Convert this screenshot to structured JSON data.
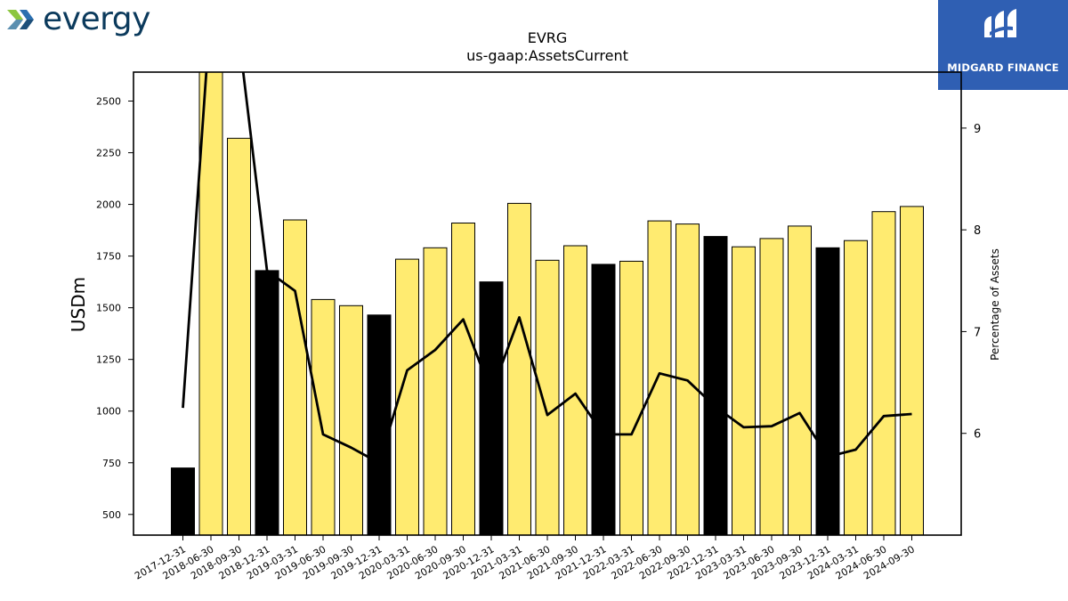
{
  "header": {
    "left_logo_text": "evergy",
    "right_logo_text": "MIDGARD FINANCE",
    "left_logo_icon": "evergy-chevron-icon",
    "right_logo_icon": "midgard-monogram-icon"
  },
  "chart_data": {
    "type": "bar",
    "title": "EVRG",
    "subtitle": "us-gaap:AssetsCurrent",
    "ylabel": "USDm",
    "y2label": "Percentage of Assets",
    "ylim": [
      400,
      2640
    ],
    "y2lim": [
      5.0,
      9.55
    ],
    "yticks": [
      500,
      750,
      1000,
      1250,
      1500,
      1750,
      2000,
      2250,
      2500
    ],
    "y2ticks": [
      6,
      7,
      8,
      9
    ],
    "grid": false,
    "categories": [
      "2017-12-31",
      "2018-06-30",
      "2018-09-30",
      "2018-12-31",
      "2019-03-31",
      "2019-06-30",
      "2019-09-30",
      "2019-12-31",
      "2020-03-31",
      "2020-06-30",
      "2020-09-30",
      "2020-12-31",
      "2021-03-31",
      "2021-06-30",
      "2021-09-30",
      "2021-12-31",
      "2022-03-31",
      "2022-06-30",
      "2022-09-30",
      "2022-12-31",
      "2023-03-31",
      "2023-06-30",
      "2023-09-30",
      "2023-12-31",
      "2024-03-31",
      "2024-06-30",
      "2024-09-30"
    ],
    "series": [
      {
        "axis": "left",
        "kind": "bar",
        "values": [
          725,
          2700,
          2320,
          1680,
          1925,
          1540,
          1510,
          1465,
          1735,
          1790,
          1910,
          1625,
          2005,
          1730,
          1800,
          1710,
          1725,
          1920,
          1905,
          1845,
          1795,
          1835,
          1895,
          1790,
          1825,
          1965,
          1990
        ],
        "is_year_end": [
          true,
          false,
          false,
          true,
          false,
          false,
          false,
          true,
          false,
          false,
          false,
          true,
          false,
          false,
          false,
          true,
          false,
          false,
          false,
          true,
          false,
          false,
          false,
          true,
          false,
          false,
          false
        ]
      },
      {
        "axis": "right",
        "kind": "line",
        "values": [
          6.25,
          10.2,
          9.9,
          7.6,
          7.4,
          5.99,
          5.86,
          5.71,
          6.62,
          6.82,
          7.12,
          6.4,
          7.14,
          6.18,
          6.39,
          5.99,
          5.99,
          6.59,
          6.52,
          6.26,
          6.06,
          6.07,
          6.2,
          5.77,
          5.84,
          6.17,
          6.19
        ]
      }
    ],
    "colors": {
      "bar_year_end": "#000000",
      "bar_quarter": "#ffeb70",
      "bar_edge": "#000000",
      "line": "#000000"
    }
  }
}
